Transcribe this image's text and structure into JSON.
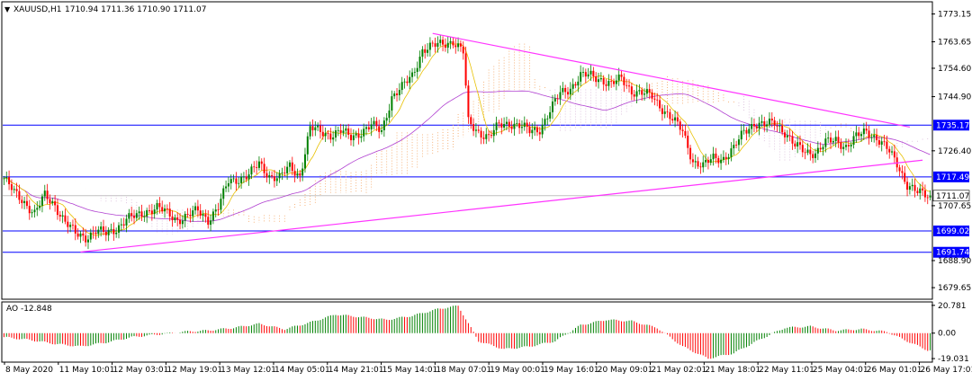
{
  "header": {
    "symbol": "XAUUSD,H1",
    "ohlc": "1710.94 1711.36 1710.90 1711.07",
    "ao_label": "AO -12.848"
  },
  "chart_data": {
    "type": "candlestick",
    "symbol": "XAUUSD",
    "timeframe": "H1",
    "ohlc_current": {
      "open": 1710.94,
      "high": 1711.36,
      "low": 1710.9,
      "close": 1711.07
    },
    "price_axis": {
      "ticks": [
        "1773.15",
        "1763.65",
        "1754.60",
        "1744.90",
        "1735.17",
        "1726.40",
        "1717.49",
        "1707.65",
        "1699.02",
        "1691.74",
        "1688.90",
        "1679.65"
      ],
      "range": [
        1676.0,
        1777.0
      ]
    },
    "time_axis": {
      "ticks": [
        "8 May 2020",
        "11 May 10:01",
        "12 May 03:01",
        "12 May 19:01",
        "13 May 12:01",
        "14 May 05:01",
        "14 May 21:01",
        "15 May 14:01",
        "18 May 07:01",
        "19 May 00:01",
        "19 May 16:01",
        "20 May 09:01",
        "21 May 02:01",
        "21 May 18:01",
        "22 May 11:01",
        "25 May 04:01",
        "26 May 01:01",
        "26 May 17:01"
      ]
    },
    "horizontal_levels": [
      {
        "price": 1735.17,
        "label": "1735.17",
        "color": "#0000ff"
      },
      {
        "price": 1717.49,
        "label": "1717.49",
        "color": "#0000ff"
      },
      {
        "price": 1699.02,
        "label": "1699.02",
        "color": "#0000ff"
      },
      {
        "price": 1691.74,
        "label": "1691.74",
        "color": "#0000ff"
      }
    ],
    "current_price": {
      "price": 1711.07,
      "label": "1711.07"
    },
    "trendlines": [
      {
        "from": {
          "bar": 168,
          "price": 1766.5
        },
        "to": {
          "bar": 355,
          "price": 1734.5
        },
        "color": "#ff33ff"
      },
      {
        "from": {
          "bar": 30,
          "price": 1691.8
        },
        "to": {
          "bar": 360,
          "price": 1723.2
        },
        "color": "#ff33ff"
      }
    ],
    "close_path": [
      [
        0,
        1717
      ],
      [
        4,
        1712
      ],
      [
        8,
        1709
      ],
      [
        12,
        1705
      ],
      [
        16,
        1711
      ],
      [
        20,
        1708
      ],
      [
        24,
        1702
      ],
      [
        28,
        1698
      ],
      [
        32,
        1697
      ],
      [
        36,
        1699
      ],
      [
        40,
        1698
      ],
      [
        44,
        1700
      ],
      [
        48,
        1703
      ],
      [
        52,
        1704
      ],
      [
        56,
        1706
      ],
      [
        60,
        1707
      ],
      [
        64,
        1705
      ],
      [
        68,
        1703
      ],
      [
        72,
        1704
      ],
      [
        76,
        1706
      ],
      [
        80,
        1703
      ],
      [
        84,
        1707
      ],
      [
        88,
        1716
      ],
      [
        92,
        1717
      ],
      [
        96,
        1718
      ],
      [
        100,
        1722
      ],
      [
        104,
        1718
      ],
      [
        108,
        1717
      ],
      [
        112,
        1721
      ],
      [
        116,
        1718
      ],
      [
        120,
        1734
      ],
      [
        124,
        1733
      ],
      [
        128,
        1732
      ],
      [
        132,
        1733
      ],
      [
        136,
        1731
      ],
      [
        140,
        1733
      ],
      [
        144,
        1735
      ],
      [
        148,
        1733
      ],
      [
        152,
        1745
      ],
      [
        156,
        1748
      ],
      [
        160,
        1752
      ],
      [
        164,
        1761
      ],
      [
        168,
        1762
      ],
      [
        172,
        1763
      ],
      [
        176,
        1764
      ],
      [
        180,
        1760
      ],
      [
        182,
        1736
      ],
      [
        186,
        1733
      ],
      [
        190,
        1731
      ],
      [
        194,
        1735
      ],
      [
        198,
        1736
      ],
      [
        202,
        1735
      ],
      [
        206,
        1733
      ],
      [
        210,
        1734
      ],
      [
        214,
        1740
      ],
      [
        218,
        1746
      ],
      [
        222,
        1748
      ],
      [
        226,
        1752
      ],
      [
        230,
        1752
      ],
      [
        234,
        1751
      ],
      [
        238,
        1749
      ],
      [
        242,
        1751
      ],
      [
        246,
        1747
      ],
      [
        250,
        1746
      ],
      [
        254,
        1745
      ],
      [
        258,
        1741
      ],
      [
        262,
        1737
      ],
      [
        266,
        1733
      ],
      [
        270,
        1723
      ],
      [
        274,
        1721
      ],
      [
        278,
        1724
      ],
      [
        282,
        1724
      ],
      [
        286,
        1727
      ],
      [
        290,
        1733
      ],
      [
        294,
        1736
      ],
      [
        298,
        1735
      ],
      [
        302,
        1736
      ],
      [
        306,
        1733
      ],
      [
        310,
        1728
      ],
      [
        314,
        1726
      ],
      [
        318,
        1726
      ],
      [
        322,
        1729
      ],
      [
        326,
        1730
      ],
      [
        330,
        1728
      ],
      [
        334,
        1731
      ],
      [
        338,
        1733
      ],
      [
        342,
        1731
      ],
      [
        346,
        1727
      ],
      [
        350,
        1722
      ],
      [
        354,
        1715
      ],
      [
        358,
        1712
      ],
      [
        362,
        1711.07
      ]
    ],
    "ao_indicator": {
      "label": "AO -12.848",
      "ticks": [
        "20.781",
        "0.00",
        "-19.031"
      ],
      "range": [
        -21.0,
        22.0
      ],
      "wave_points": [
        [
          0,
          -3
        ],
        [
          10,
          -5
        ],
        [
          20,
          -8
        ],
        [
          30,
          -10
        ],
        [
          40,
          -7
        ],
        [
          50,
          -3
        ],
        [
          60,
          -1
        ],
        [
          70,
          1
        ],
        [
          80,
          2
        ],
        [
          90,
          4
        ],
        [
          100,
          7
        ],
        [
          110,
          3
        ],
        [
          120,
          8
        ],
        [
          130,
          14
        ],
        [
          140,
          12
        ],
        [
          150,
          10
        ],
        [
          160,
          13
        ],
        [
          170,
          18
        ],
        [
          178,
          20.5
        ],
        [
          186,
          -6
        ],
        [
          196,
          -12
        ],
        [
          206,
          -10
        ],
        [
          216,
          -6
        ],
        [
          226,
          6
        ],
        [
          236,
          10
        ],
        [
          246,
          9
        ],
        [
          256,
          4
        ],
        [
          266,
          -10
        ],
        [
          276,
          -19
        ],
        [
          286,
          -15
        ],
        [
          296,
          -5
        ],
        [
          306,
          4
        ],
        [
          316,
          5
        ],
        [
          326,
          2
        ],
        [
          336,
          3
        ],
        [
          346,
          1
        ],
        [
          354,
          -6
        ],
        [
          362,
          -12.8
        ]
      ]
    }
  }
}
